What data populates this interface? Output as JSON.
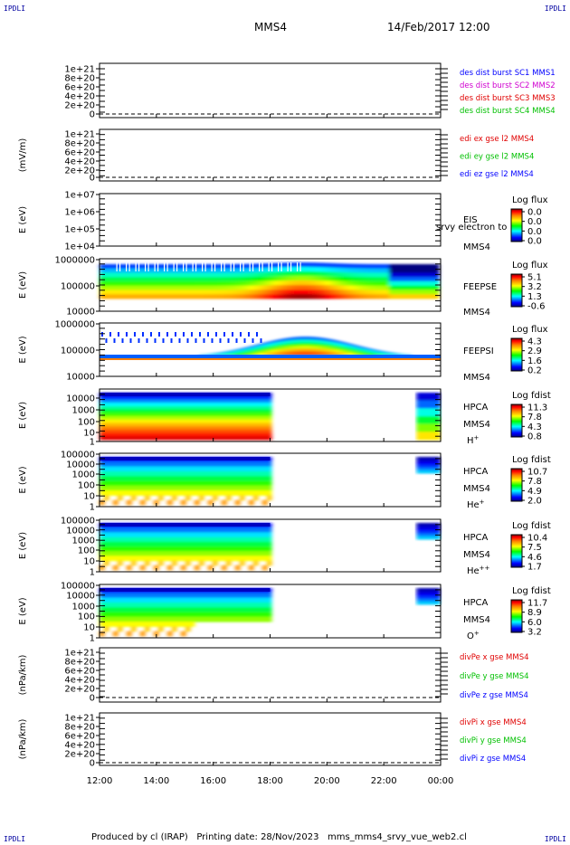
{
  "corner_label": "IPDLI",
  "header": {
    "spacecraft": "MMS4",
    "datetime": "14/Feb/2017 12:00"
  },
  "footer": "Produced by cl (IRAP)   Printing date: 28/Nov/2023   mms_mms4_srvy_vue_web2.cl",
  "time_axis": {
    "ticks": [
      "12:00",
      "14:00",
      "16:00",
      "18:00",
      "20:00",
      "22:00",
      "00:00"
    ]
  },
  "panels": [
    {
      "id": "des",
      "kind": "line",
      "ylabel": "",
      "yticks": [
        "1e+21",
        "8e+20",
        "6e+20",
        "4e+20",
        "2e+20",
        "0"
      ],
      "legend": [
        {
          "text": "des dist burst SC1 MMS1",
          "color": "#0000ff"
        },
        {
          "text": "des dist burst SC2 MMS2",
          "color": "#d000d0"
        },
        {
          "text": "des dist burst SC3 MMS3",
          "color": "#e00000"
        },
        {
          "text": "des dist burst SC4 MMS4",
          "color": "#00c000"
        }
      ]
    },
    {
      "id": "edi",
      "kind": "line",
      "ylabel": "(mV/m)",
      "yticks": [
        "1e+21",
        "8e+20",
        "6e+20",
        "4e+20",
        "2e+20",
        "0"
      ],
      "legend": [
        {
          "text": "edi ex gse l2 MMS4",
          "color": "#e00000"
        },
        {
          "text": "edi ey gse l2 MMS4",
          "color": "#00c000"
        },
        {
          "text": "edi ez gse l2 MMS4",
          "color": "#0000ff"
        }
      ]
    },
    {
      "id": "eis",
      "kind": "spec",
      "ylabel": "E (eV)",
      "yticks": [
        "1e+07",
        "1e+06",
        "1e+05",
        "1e+04"
      ],
      "instrument": "EIS",
      "sc": "MMS4",
      "overlay": "srvy electron to",
      "cbar_title": "Log flux",
      "cbar_ticks": [
        "0.0",
        "0.0",
        "0.0",
        "0.0"
      ]
    },
    {
      "id": "feepse",
      "kind": "spec",
      "ylabel": "E (eV)",
      "yticks": [
        "1000000",
        "100000",
        "10000"
      ],
      "instrument": "FEEPSE",
      "sc": "MMS4",
      "cbar_title": "Log flux",
      "cbar_ticks": [
        "5.1",
        "3.2",
        "1.3",
        "-0.6"
      ]
    },
    {
      "id": "feepsi",
      "kind": "spec",
      "ylabel": "E (eV)",
      "yticks": [
        "1000000",
        "100000",
        "10000"
      ],
      "instrument": "FEEPSI",
      "sc": "MMS4",
      "cbar_title": "Log flux",
      "cbar_ticks": [
        "4.3",
        "2.9",
        "1.6",
        "0.2"
      ]
    },
    {
      "id": "hpca_h",
      "kind": "spec",
      "ylabel": "E (eV)",
      "yticks": [
        "10000",
        "1000",
        "100",
        "10",
        "1"
      ],
      "instrument": "HPCA",
      "sc": "MMS4",
      "species": "H",
      "species_sup": "+",
      "cbar_title": "Log fdist",
      "cbar_ticks": [
        "11.3",
        "7.8",
        "4.3",
        "0.8"
      ]
    },
    {
      "id": "hpca_he",
      "kind": "spec",
      "ylabel": "E (eV)",
      "yticks": [
        "100000",
        "10000",
        "1000",
        "100",
        "10",
        "1"
      ],
      "instrument": "HPCA",
      "sc": "MMS4",
      "species": "He",
      "species_sup": "+",
      "cbar_title": "Log fdist",
      "cbar_ticks": [
        "10.7",
        "7.8",
        "4.9",
        "2.0"
      ]
    },
    {
      "id": "hpca_he2",
      "kind": "spec",
      "ylabel": "E (eV)",
      "yticks": [
        "100000",
        "10000",
        "1000",
        "100",
        "10",
        "1"
      ],
      "instrument": "HPCA",
      "sc": "MMS4",
      "species": "He",
      "species_sup": "++",
      "cbar_title": "Log fdist",
      "cbar_ticks": [
        "10.4",
        "7.5",
        "4.6",
        "1.7"
      ]
    },
    {
      "id": "hpca_o",
      "kind": "spec",
      "ylabel": "E (eV)",
      "yticks": [
        "100000",
        "10000",
        "1000",
        "100",
        "10",
        "1"
      ],
      "instrument": "HPCA",
      "sc": "MMS4",
      "species": "O",
      "species_sup": "+",
      "cbar_title": "Log fdist",
      "cbar_ticks": [
        "11.7",
        "8.9",
        "6.0",
        "3.2"
      ]
    },
    {
      "id": "divpe",
      "kind": "line",
      "ylabel": "(nPa/km)",
      "yticks": [
        "1e+21",
        "8e+20",
        "6e+20",
        "4e+20",
        "2e+20",
        "0"
      ],
      "legend": [
        {
          "text": "divPe x gse MMS4",
          "color": "#e00000"
        },
        {
          "text": "divPe y gse MMS4",
          "color": "#00c000"
        },
        {
          "text": "divPe z gse MMS4",
          "color": "#0000ff"
        }
      ]
    },
    {
      "id": "divpi",
      "kind": "line",
      "ylabel": "(nPa/km)",
      "yticks": [
        "1e+21",
        "8e+20",
        "6e+20",
        "4e+20",
        "2e+20",
        "0"
      ],
      "legend": [
        {
          "text": "divPi x gse MMS4",
          "color": "#e00000"
        },
        {
          "text": "divPi y gse MMS4",
          "color": "#00c000"
        },
        {
          "text": "divPi z gse MMS4",
          "color": "#0000ff"
        }
      ]
    }
  ],
  "chart_data": {
    "type": "heatmap",
    "title": "MMS4   14/Feb/2017 12:00",
    "x_range": [
      "2017-02-14 12:00",
      "2017-02-15 00:00"
    ],
    "data_gaps": [
      {
        "panels": [
          "hpca_h",
          "hpca_he",
          "hpca_he2",
          "hpca_o"
        ],
        "from": "18:00",
        "to": "23:10"
      }
    ],
    "colorscale": [
      "#000080",
      "#0000ff",
      "#00ffff",
      "#00ff00",
      "#ffff00",
      "#ff8000",
      "#ff0000",
      "#800000"
    ]
  }
}
